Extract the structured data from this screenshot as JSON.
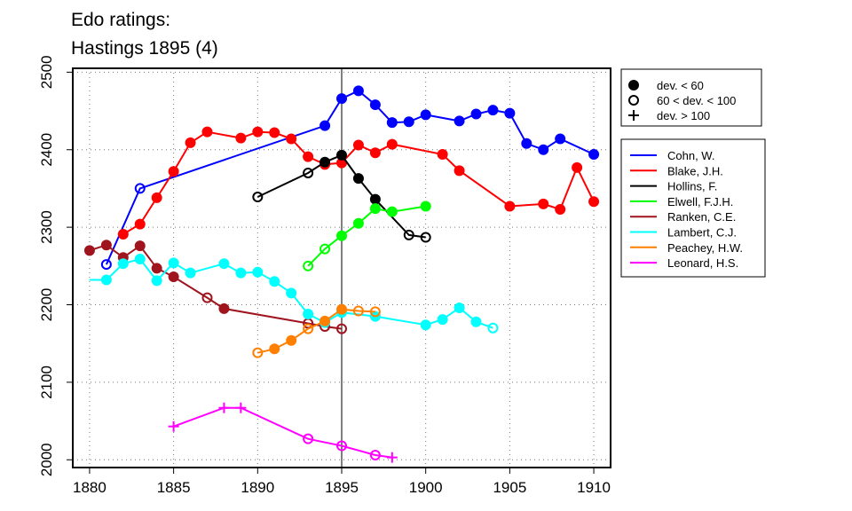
{
  "chart_data": {
    "type": "line",
    "title": [
      "Edo ratings:",
      "Hastings 1895 (4)"
    ],
    "xlim": [
      1879,
      1911
    ],
    "ylim": [
      1990,
      2505
    ],
    "x_ticks": [
      "1880",
      "1885",
      "1890",
      "1895",
      "1900",
      "1905",
      "1910"
    ],
    "y_ticks": [
      "2000",
      "2100",
      "2200",
      "2300",
      "2400",
      "2500"
    ],
    "grid": true,
    "reference_line_x": 1895,
    "marker_legend": [
      {
        "marker": "filled",
        "label": "dev. < 60"
      },
      {
        "marker": "open",
        "label": "60 < dev. < 100"
      },
      {
        "marker": "plus",
        "label": "dev. > 100"
      }
    ],
    "legend_placement": "right",
    "series": [
      {
        "name": "Cohn, W.",
        "color": "#0000ff",
        "points": [
          {
            "x": 1881,
            "y": 2252,
            "m": "o"
          },
          {
            "x": 1883,
            "y": 2350,
            "m": "o"
          },
          {
            "x": 1894,
            "y": 2431,
            "m": "f"
          },
          {
            "x": 1895,
            "y": 2466,
            "m": "f"
          },
          {
            "x": 1896,
            "y": 2476,
            "m": "f"
          },
          {
            "x": 1897,
            "y": 2458,
            "m": "f"
          },
          {
            "x": 1898,
            "y": 2435,
            "m": "f"
          },
          {
            "x": 1899,
            "y": 2436,
            "m": "f"
          },
          {
            "x": 1900,
            "y": 2445,
            "m": "f"
          },
          {
            "x": 1902,
            "y": 2437,
            "m": "f"
          },
          {
            "x": 1903,
            "y": 2446,
            "m": "f"
          },
          {
            "x": 1904,
            "y": 2451,
            "m": "f"
          },
          {
            "x": 1905,
            "y": 2447,
            "m": "f"
          },
          {
            "x": 1906,
            "y": 2408,
            "m": "f"
          },
          {
            "x": 1907,
            "y": 2400,
            "m": "f"
          },
          {
            "x": 1908,
            "y": 2414,
            "m": "f"
          },
          {
            "x": 1910,
            "y": 2394,
            "m": "f"
          }
        ]
      },
      {
        "name": "Blake, J.H.",
        "color": "#ff0000",
        "points": [
          {
            "x": 1882,
            "y": 2291,
            "m": "f"
          },
          {
            "x": 1883,
            "y": 2304,
            "m": "f"
          },
          {
            "x": 1884,
            "y": 2338,
            "m": "f"
          },
          {
            "x": 1885,
            "y": 2372,
            "m": "f"
          },
          {
            "x": 1886,
            "y": 2409,
            "m": "f"
          },
          {
            "x": 1887,
            "y": 2423,
            "m": "f"
          },
          {
            "x": 1889,
            "y": 2415,
            "m": "f"
          },
          {
            "x": 1890,
            "y": 2423,
            "m": "f"
          },
          {
            "x": 1891,
            "y": 2422,
            "m": "f"
          },
          {
            "x": 1892,
            "y": 2414,
            "m": "f"
          },
          {
            "x": 1893,
            "y": 2391,
            "m": "f"
          },
          {
            "x": 1894,
            "y": 2381,
            "m": "f"
          },
          {
            "x": 1895,
            "y": 2383,
            "m": "f"
          },
          {
            "x": 1896,
            "y": 2406,
            "m": "f"
          },
          {
            "x": 1897,
            "y": 2396,
            "m": "f"
          },
          {
            "x": 1898,
            "y": 2407,
            "m": "f"
          },
          {
            "x": 1901,
            "y": 2394,
            "m": "f"
          },
          {
            "x": 1902,
            "y": 2373,
            "m": "f"
          },
          {
            "x": 1905,
            "y": 2327,
            "m": "f"
          },
          {
            "x": 1907,
            "y": 2330,
            "m": "f"
          },
          {
            "x": 1908,
            "y": 2323,
            "m": "f"
          },
          {
            "x": 1909,
            "y": 2377,
            "m": "f"
          },
          {
            "x": 1910,
            "y": 2333,
            "m": "f"
          }
        ]
      },
      {
        "name": "Hollins, F.",
        "color": "#000000",
        "points": [
          {
            "x": 1890,
            "y": 2339,
            "m": "o"
          },
          {
            "x": 1893,
            "y": 2370,
            "m": "o"
          },
          {
            "x": 1894,
            "y": 2384,
            "m": "f"
          },
          {
            "x": 1895,
            "y": 2393,
            "m": "f"
          },
          {
            "x": 1896,
            "y": 2363,
            "m": "f"
          },
          {
            "x": 1897,
            "y": 2336,
            "m": "f"
          },
          {
            "x": 1899,
            "y": 2290,
            "m": "o"
          },
          {
            "x": 1900,
            "y": 2287,
            "m": "o"
          }
        ]
      },
      {
        "name": "Elwell, F.J.H.",
        "color": "#00ff00",
        "points": [
          {
            "x": 1893,
            "y": 2250,
            "m": "o"
          },
          {
            "x": 1894,
            "y": 2272,
            "m": "o"
          },
          {
            "x": 1895,
            "y": 2289,
            "m": "f"
          },
          {
            "x": 1896,
            "y": 2305,
            "m": "f"
          },
          {
            "x": 1897,
            "y": 2324,
            "m": "f"
          },
          {
            "x": 1898,
            "y": 2320,
            "m": "f"
          },
          {
            "x": 1900,
            "y": 2327,
            "m": "f"
          }
        ]
      },
      {
        "name": "Ranken, C.E.",
        "color": "#a0141e",
        "points": [
          {
            "x": 1880,
            "y": 2270,
            "m": "f"
          },
          {
            "x": 1881,
            "y": 2277,
            "m": "f"
          },
          {
            "x": 1882,
            "y": 2261,
            "m": "f"
          },
          {
            "x": 1883,
            "y": 2276,
            "m": "f"
          },
          {
            "x": 1884,
            "y": 2247,
            "m": "f"
          },
          {
            "x": 1885,
            "y": 2236,
            "m": "f"
          },
          {
            "x": 1887,
            "y": 2209,
            "m": "o"
          },
          {
            "x": 1888,
            "y": 2195,
            "m": "f"
          },
          {
            "x": 1893,
            "y": 2176,
            "m": "o"
          },
          {
            "x": 1894,
            "y": 2172,
            "m": "o"
          },
          {
            "x": 1895,
            "y": 2169,
            "m": "o"
          }
        ]
      },
      {
        "name": "Lambert, C.J.",
        "color": "#00ffff",
        "points": [
          {
            "x": 1880,
            "y": 2232,
            "m": "n"
          },
          {
            "x": 1881,
            "y": 2232,
            "m": "f"
          },
          {
            "x": 1882,
            "y": 2253,
            "m": "f"
          },
          {
            "x": 1883,
            "y": 2259,
            "m": "f"
          },
          {
            "x": 1884,
            "y": 2231,
            "m": "f"
          },
          {
            "x": 1885,
            "y": 2254,
            "m": "f"
          },
          {
            "x": 1886,
            "y": 2241,
            "m": "f"
          },
          {
            "x": 1888,
            "y": 2253,
            "m": "f"
          },
          {
            "x": 1889,
            "y": 2241,
            "m": "f"
          },
          {
            "x": 1890,
            "y": 2242,
            "m": "f"
          },
          {
            "x": 1891,
            "y": 2230,
            "m": "f"
          },
          {
            "x": 1892,
            "y": 2215,
            "m": "f"
          },
          {
            "x": 1893,
            "y": 2188,
            "m": "f"
          },
          {
            "x": 1894,
            "y": 2177,
            "m": "f"
          },
          {
            "x": 1895,
            "y": 2190,
            "m": "f"
          },
          {
            "x": 1897,
            "y": 2185,
            "m": "f"
          },
          {
            "x": 1900,
            "y": 2174,
            "m": "f"
          },
          {
            "x": 1901,
            "y": 2181,
            "m": "f"
          },
          {
            "x": 1902,
            "y": 2196,
            "m": "f"
          },
          {
            "x": 1903,
            "y": 2178,
            "m": "f"
          },
          {
            "x": 1904,
            "y": 2170,
            "m": "o"
          }
        ]
      },
      {
        "name": "Peachey, H.W.",
        "color": "#ff7f00",
        "points": [
          {
            "x": 1890,
            "y": 2138,
            "m": "o"
          },
          {
            "x": 1891,
            "y": 2143,
            "m": "f"
          },
          {
            "x": 1892,
            "y": 2154,
            "m": "f"
          },
          {
            "x": 1893,
            "y": 2169,
            "m": "o"
          },
          {
            "x": 1894,
            "y": 2179,
            "m": "f"
          },
          {
            "x": 1895,
            "y": 2194,
            "m": "f"
          },
          {
            "x": 1896,
            "y": 2192,
            "m": "o"
          },
          {
            "x": 1897,
            "y": 2191,
            "m": "o"
          }
        ]
      },
      {
        "name": "Leonard, H.S.",
        "color": "#ff00ff",
        "points": [
          {
            "x": 1885,
            "y": 2043,
            "m": "p"
          },
          {
            "x": 1888,
            "y": 2067,
            "m": "p"
          },
          {
            "x": 1889,
            "y": 2067,
            "m": "p"
          },
          {
            "x": 1893,
            "y": 2027,
            "m": "o"
          },
          {
            "x": 1895,
            "y": 2018,
            "m": "o"
          },
          {
            "x": 1897,
            "y": 2006,
            "m": "o"
          },
          {
            "x": 1898,
            "y": 2003,
            "m": "p"
          }
        ]
      }
    ]
  }
}
